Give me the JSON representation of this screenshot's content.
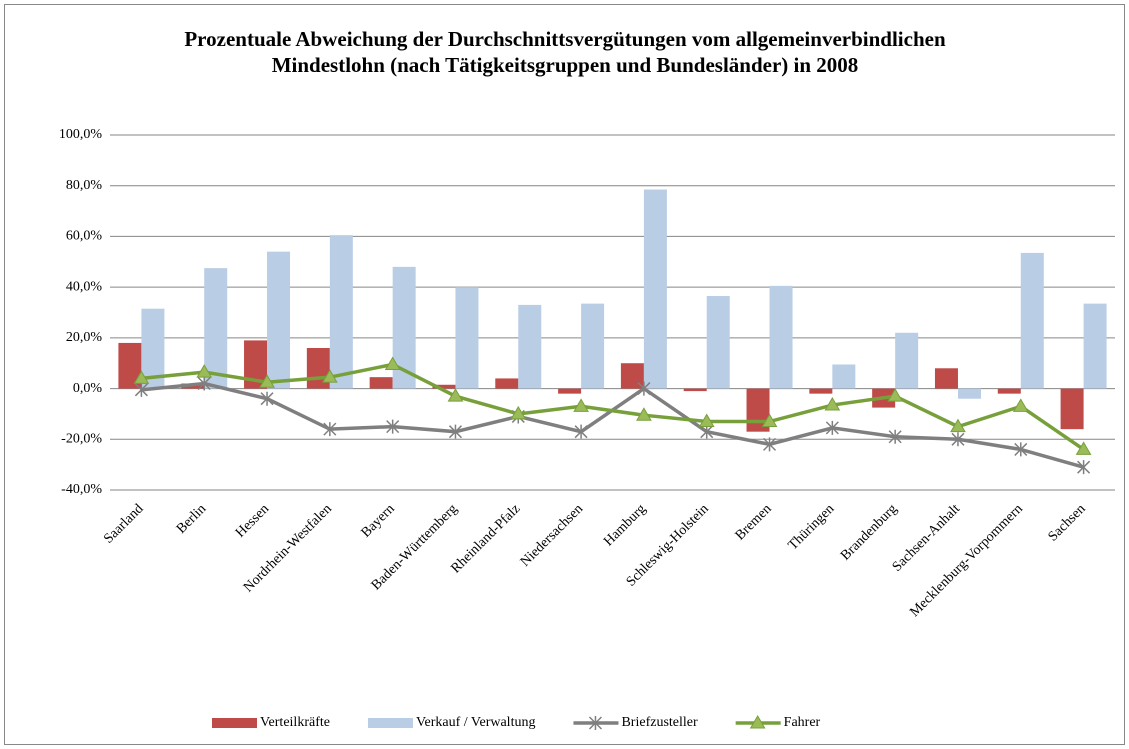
{
  "chart_data": {
    "type": "bar_line",
    "title": "Prozentuale Abweichung der Durchschnittsvergütungen vom allgemeinverbindlichen Mindestlohn (nach Tätigkeitsgruppen und Bundesländer) in 2008",
    "categories": [
      "Saarland",
      "Berlin",
      "Hessen",
      "Nordrhein-Westfalen",
      "Bayern",
      "Baden-Württemberg",
      "Rheinland-Pfalz",
      "Niedersachsen",
      "Hamburg",
      "Schleswig-Holstein",
      "Bremen",
      "Thüringen",
      "Brandenburg",
      "Sachsen-Anhalt",
      "Mecklenburg-Vorpommern",
      "Sachsen"
    ],
    "series": [
      {
        "name": "Verteilkräfte",
        "type": "bar",
        "color": "#be4b48",
        "values": [
          18,
          2,
          19,
          16,
          4.5,
          1.5,
          4,
          -2,
          10,
          -1,
          -17,
          -2,
          -7.5,
          8,
          -2,
          -16
        ]
      },
      {
        "name": "Verkauf / Verwaltung",
        "type": "bar",
        "color": "#b9cde5",
        "values": [
          31.5,
          47.5,
          54,
          60.5,
          48,
          40,
          33,
          33.5,
          78.5,
          36.5,
          40.5,
          9.5,
          22,
          -4,
          53.5,
          33.5
        ]
      },
      {
        "name": "Briefzusteller",
        "type": "line",
        "marker": "star",
        "color": "#7f7f7f",
        "values": [
          -0.5,
          2,
          -4,
          -16,
          -15,
          -17,
          -11,
          -17,
          0,
          -17,
          -22,
          -15.5,
          -19,
          -20,
          -24,
          -31
        ]
      },
      {
        "name": "Fahrer",
        "type": "line",
        "marker": "triangle",
        "color": "#77a03a",
        "values": [
          4,
          6.5,
          2.5,
          4.5,
          9.5,
          -3,
          -10,
          -7,
          -10.5,
          -13,
          -13,
          -6.5,
          -3,
          -15,
          -7,
          -24
        ]
      }
    ],
    "ylim": [
      -40,
      100
    ],
    "yticks": [
      {
        "value": -40,
        "label": "-40,0%"
      },
      {
        "value": -20,
        "label": "-20,0%"
      },
      {
        "value": 0,
        "label": "0,0%"
      },
      {
        "value": 20,
        "label": "20,0%"
      },
      {
        "value": 40,
        "label": "40,0%"
      },
      {
        "value": 60,
        "label": "60,0%"
      },
      {
        "value": 80,
        "label": "80,0%"
      },
      {
        "value": 100,
        "label": "100,0%"
      }
    ],
    "grid": true,
    "legend": "bottom"
  }
}
